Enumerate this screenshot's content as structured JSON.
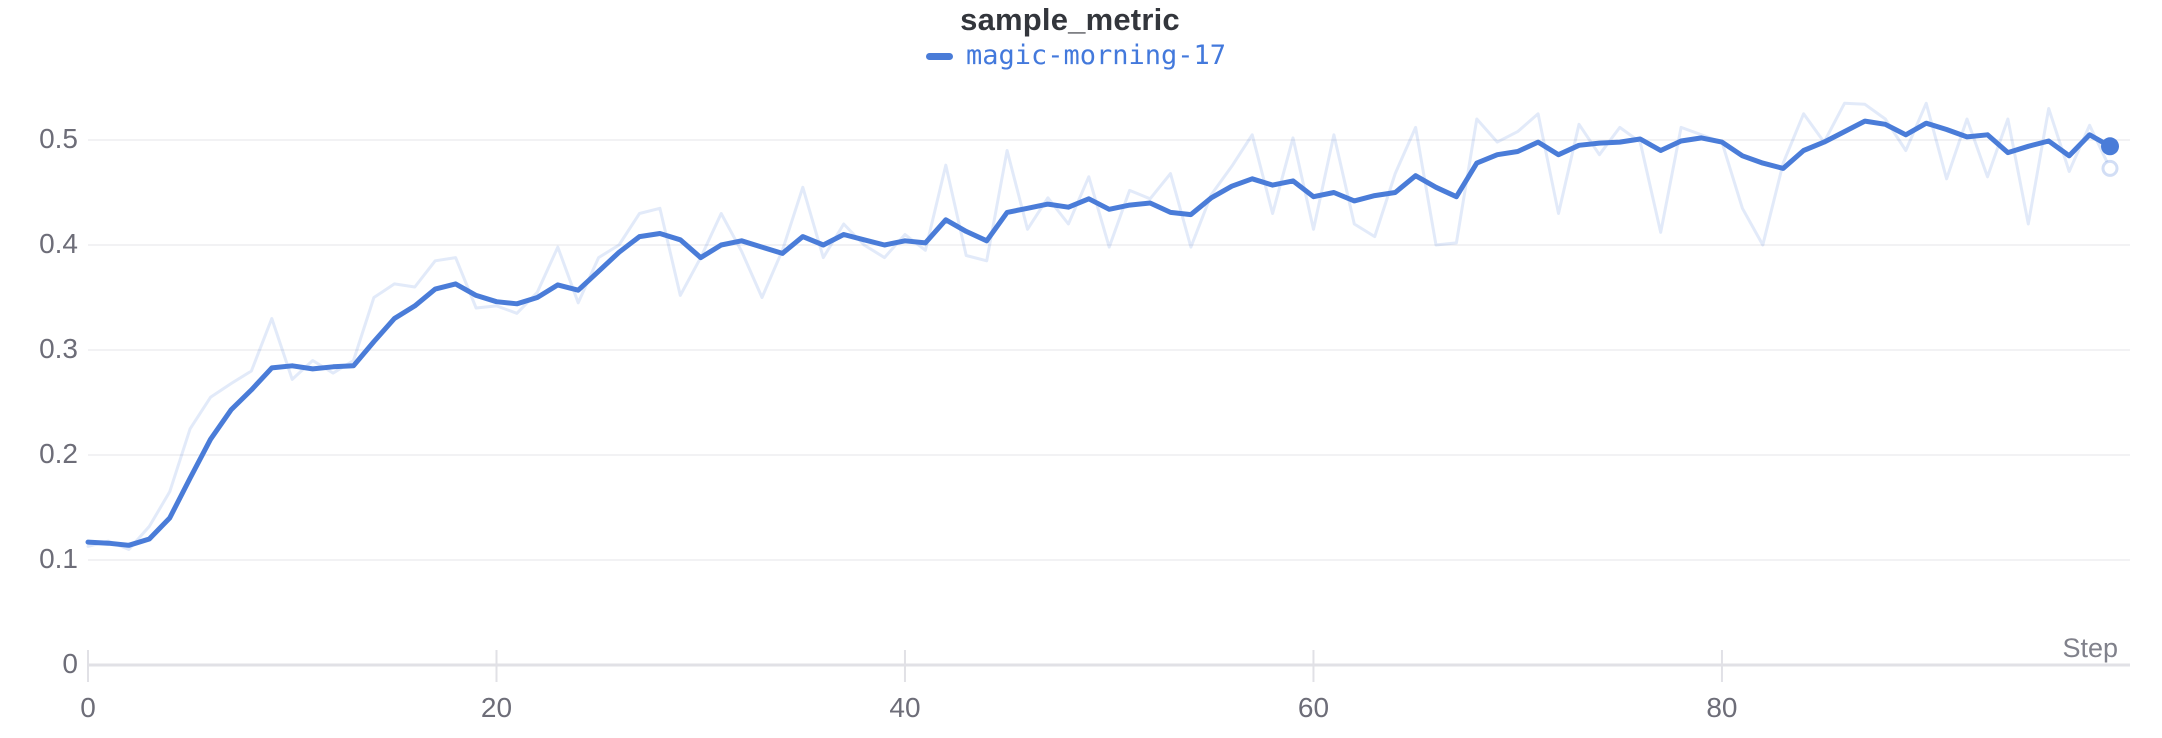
{
  "colors": {
    "accent": "#4A7CD8",
    "legend_text": "#4379DC",
    "title_text": "#33363C",
    "tick_text": "#6D6D78",
    "axis_title_text": "#80818B",
    "gridline": "#EDEDF0",
    "axis_line": "#E1E1E6",
    "background": "#FFFFFF"
  },
  "chart_data": {
    "type": "line",
    "title": "sample_metric",
    "xlabel": "Step",
    "ylabel": "",
    "xlim": [
      0,
      100
    ],
    "ylim": [
      0,
      0.55
    ],
    "grid": "horizontal",
    "legend_position": "top-center",
    "x_ticks": {
      "values": [
        0,
        20,
        40,
        60,
        80
      ],
      "labels": [
        "0",
        "20",
        "40",
        "60",
        "80"
      ]
    },
    "y_ticks": {
      "values": [
        0,
        0.1,
        0.2,
        0.3,
        0.4,
        0.5
      ],
      "labels": [
        "0",
        "0.1",
        "0.2",
        "0.3",
        "0.4",
        "0.5"
      ]
    },
    "x_start": 0,
    "x_increment": 1,
    "series": [
      {
        "name": "magic-morning-17",
        "role": "raw",
        "color": "#4A7CD8",
        "opacity": 0.16,
        "line_width": 3,
        "end_marker": "open-ring",
        "values": [
          0.113,
          0.118,
          0.11,
          0.132,
          0.165,
          0.225,
          0.255,
          0.268,
          0.28,
          0.33,
          0.272,
          0.29,
          0.278,
          0.29,
          0.35,
          0.363,
          0.36,
          0.385,
          0.388,
          0.34,
          0.342,
          0.335,
          0.355,
          0.398,
          0.345,
          0.388,
          0.4,
          0.43,
          0.435,
          0.352,
          0.388,
          0.43,
          0.394,
          0.35,
          0.395,
          0.455,
          0.388,
          0.42,
          0.4,
          0.388,
          0.41,
          0.395,
          0.476,
          0.39,
          0.385,
          0.49,
          0.415,
          0.445,
          0.42,
          0.465,
          0.398,
          0.452,
          0.444,
          0.468,
          0.398,
          0.448,
          0.475,
          0.505,
          0.43,
          0.502,
          0.415,
          0.505,
          0.42,
          0.408,
          0.468,
          0.512,
          0.4,
          0.402,
          0.52,
          0.498,
          0.508,
          0.525,
          0.43,
          0.515,
          0.486,
          0.512,
          0.498,
          0.412,
          0.512,
          0.505,
          0.498,
          0.435,
          0.4,
          0.478,
          0.525,
          0.498,
          0.535,
          0.534,
          0.52,
          0.49,
          0.535,
          0.463,
          0.52,
          0.465,
          0.52,
          0.42,
          0.53,
          0.47,
          0.514,
          0.473
        ]
      },
      {
        "name": "magic-morning-17",
        "role": "smoothed",
        "color": "#4A7CD8",
        "opacity": 1,
        "line_width": 5,
        "end_marker": "filled-dot",
        "values": [
          0.117,
          0.116,
          0.114,
          0.12,
          0.14,
          0.178,
          0.215,
          0.243,
          0.262,
          0.283,
          0.285,
          0.282,
          0.284,
          0.285,
          0.308,
          0.33,
          0.342,
          0.358,
          0.363,
          0.352,
          0.346,
          0.344,
          0.35,
          0.362,
          0.357,
          0.375,
          0.393,
          0.408,
          0.411,
          0.405,
          0.388,
          0.4,
          0.404,
          0.398,
          0.392,
          0.408,
          0.4,
          0.41,
          0.405,
          0.4,
          0.404,
          0.402,
          0.424,
          0.413,
          0.404,
          0.431,
          0.435,
          0.439,
          0.436,
          0.444,
          0.434,
          0.438,
          0.44,
          0.431,
          0.429,
          0.445,
          0.456,
          0.463,
          0.457,
          0.461,
          0.446,
          0.45,
          0.442,
          0.447,
          0.45,
          0.466,
          0.455,
          0.446,
          0.478,
          0.486,
          0.489,
          0.498,
          0.486,
          0.495,
          0.497,
          0.498,
          0.501,
          0.49,
          0.499,
          0.502,
          0.498,
          0.485,
          0.478,
          0.473,
          0.49,
          0.498,
          0.508,
          0.518,
          0.515,
          0.505,
          0.516,
          0.51,
          0.503,
          0.505,
          0.488,
          0.494,
          0.499,
          0.485,
          0.505,
          0.494
        ]
      }
    ]
  }
}
